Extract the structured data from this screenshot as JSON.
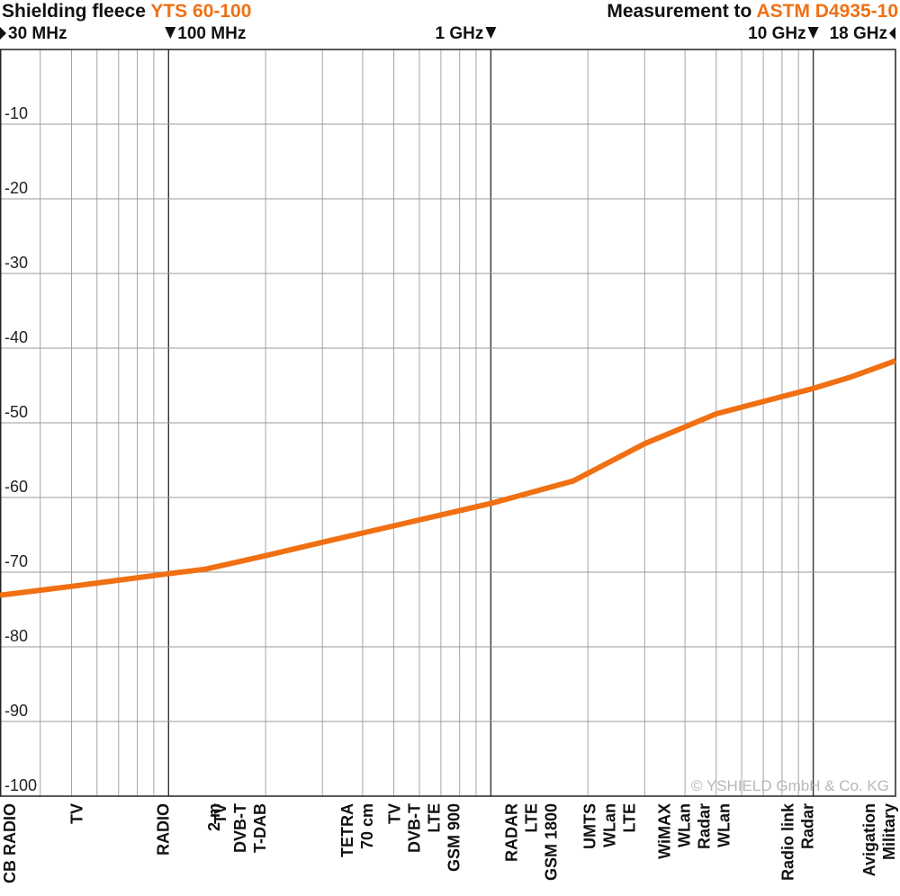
{
  "header": {
    "title_prefix": "Shielding fleece ",
    "title_product": "YTS 60-100",
    "measure_prefix": "Measurement to ",
    "measure_standard": "ASTM D4935-10"
  },
  "colors": {
    "accent": "#f07013",
    "grid_major": "#333333",
    "grid_minor": "#9a9a9a"
  },
  "copyright": "© YSHIELD GmbH & Co. KG",
  "freq_markers": [
    {
      "label": "30 MHz",
      "freq_mhz": 30,
      "arrow": "right",
      "align": "left"
    },
    {
      "label": "100 MHz",
      "freq_mhz": 100,
      "arrow": "down",
      "align": "after"
    },
    {
      "label": "1 GHz",
      "freq_mhz": 1000,
      "arrow": "down",
      "align": "before"
    },
    {
      "label": "10 GHz",
      "freq_mhz": 10000,
      "arrow": "down",
      "align": "before"
    },
    {
      "label": "18 GHz",
      "freq_mhz": 18000,
      "arrow": "left",
      "align": "right"
    }
  ],
  "chart_data": {
    "type": "line",
    "x_scale": "log",
    "xlim": [
      30,
      18000
    ],
    "ylim": [
      -100,
      0
    ],
    "ytick_labels": [
      "-10",
      "-20",
      "-30",
      "-40",
      "-50",
      "-60",
      "-70",
      "-80",
      "-90",
      "-100"
    ],
    "grid": true,
    "series": [
      {
        "color": "#f07013",
        "points": [
          {
            "x": 30,
            "y": -73.1
          },
          {
            "x": 50,
            "y": -71.9
          },
          {
            "x": 100,
            "y": -70.2
          },
          {
            "x": 130,
            "y": -69.6
          },
          {
            "x": 200,
            "y": -67.8
          },
          {
            "x": 300,
            "y": -66.0
          },
          {
            "x": 500,
            "y": -63.8
          },
          {
            "x": 1000,
            "y": -60.8
          },
          {
            "x": 1800,
            "y": -57.8
          },
          {
            "x": 3000,
            "y": -52.8
          },
          {
            "x": 5000,
            "y": -48.8
          },
          {
            "x": 10000,
            "y": -45.4
          },
          {
            "x": 13000,
            "y": -43.9
          },
          {
            "x": 18000,
            "y": -41.7
          }
        ]
      }
    ],
    "band_labels": [
      {
        "freq_mhz": 30,
        "lines": [
          "CB RADIO"
        ]
      },
      {
        "freq_mhz": 54,
        "lines": [
          "TV"
        ]
      },
      {
        "freq_mhz": 100,
        "lines": [
          "RADIO"
        ]
      },
      {
        "freq_mhz": 144,
        "lines": [
          "2 m"
        ]
      },
      {
        "freq_mhz": 200,
        "lines": [
          "TV",
          "DVB-T",
          "T-DAB"
        ]
      },
      {
        "freq_mhz": 430,
        "lines": [
          "TETRA",
          "70 cm"
        ]
      },
      {
        "freq_mhz": 800,
        "lines": [
          "TV",
          "DVB-T",
          "LTE",
          "GSM 900"
        ]
      },
      {
        "freq_mhz": 1600,
        "lines": [
          "RADAR",
          "LTE",
          "GSM 1800"
        ]
      },
      {
        "freq_mhz": 2800,
        "lines": [
          "UMTS",
          "WLan",
          "LTE"
        ]
      },
      {
        "freq_mhz": 5500,
        "lines": [
          "WiMAX",
          "WLan",
          "Radar",
          "WLan"
        ]
      },
      {
        "freq_mhz": 10000,
        "lines": [
          "Radio link",
          "Radar"
        ]
      },
      {
        "freq_mhz": 18000,
        "lines": [
          "Avigation",
          "Military"
        ]
      }
    ]
  }
}
